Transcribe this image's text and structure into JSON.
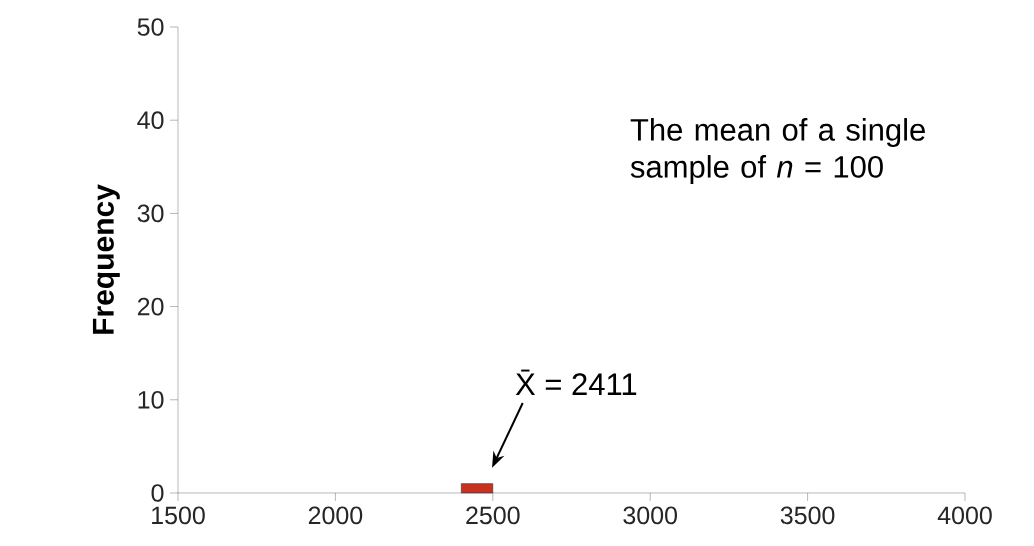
{
  "chart_data": {
    "type": "histogram",
    "ylabel": "Frequency",
    "bins": [
      2400,
      2500
    ],
    "values": [
      1
    ],
    "color": "#c8321e",
    "xlim": [
      1500,
      4000
    ],
    "xticks": [
      1500,
      2000,
      2500,
      3000,
      3500,
      4000
    ],
    "ylim": [
      0,
      50
    ],
    "yticks": [
      0,
      10,
      20,
      30,
      40,
      50
    ],
    "grid": false,
    "annotations": [
      "X̄ = 2411",
      "The mean of a single sample of *n* = 100"
    ]
  }
}
